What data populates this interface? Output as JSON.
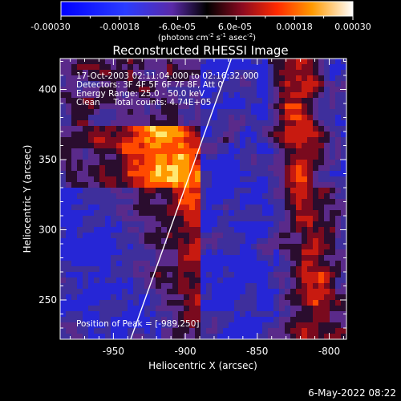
{
  "colorbar": {
    "ticks": [
      "-0.00030",
      "-0.00018",
      "-6.0e-05",
      "6.0e-05",
      "0.00018",
      "0.00030"
    ],
    "units_prefix": "(photons cm",
    "units_exp1": "-2",
    "units_mid": " s",
    "units_exp2": "-1",
    "units_mid2": " asec",
    "units_exp3": "-2",
    "units_suffix": ")"
  },
  "chart_data": {
    "type": "heatmap",
    "title": "Reconstructed RHESSI Image",
    "xlabel": "Heliocentric X (arcsec)",
    "ylabel": "Heliocentric Y (arcsec)",
    "xlim": [
      -987,
      -788
    ],
    "ylim": [
      222,
      422
    ],
    "x_ticks": [
      -950,
      -900,
      -850,
      -800
    ],
    "y_ticks": [
      250,
      300,
      350,
      400
    ],
    "annotations": [
      "17-Oct-2003 02:11:04.000 to 02:16:32.000",
      "Detectors: 3F 4F 5F 6F 7F 8F, Att 0",
      "Energy Range: 25.0 - 50.0 keV",
      "Clean     Total counts: 4.74E+05",
      "Position of Peak = [-989,250]"
    ],
    "limb_line": [
      [
        -938,
        222
      ],
      [
        -868,
        422
      ]
    ],
    "colors": {
      "negative": "#0000ff",
      "zero": "#000000",
      "positive_mid": "#ff4000",
      "positive_max": "#ffffff",
      "limb": "#ffffff"
    }
  },
  "footer_date": "6-May-2022 08:22"
}
